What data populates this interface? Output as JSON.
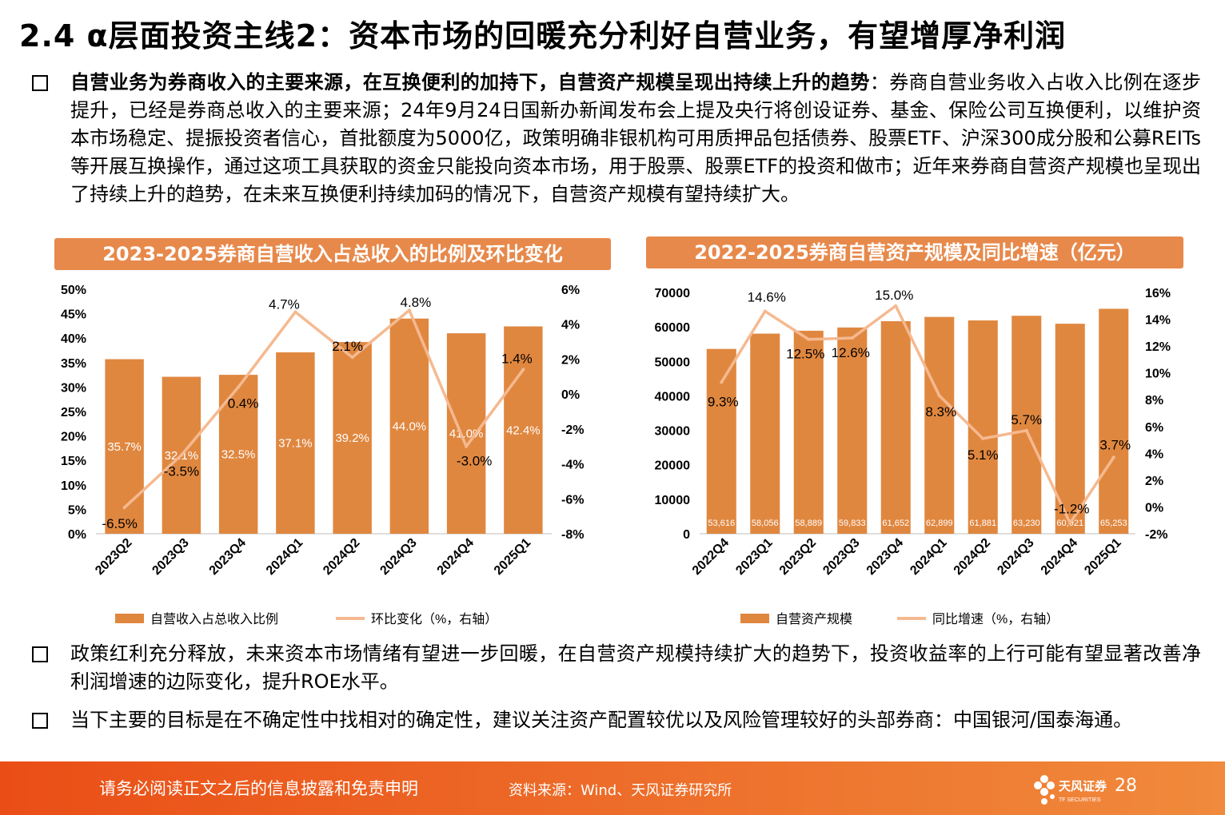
{
  "title": "2.4 α层面投资主线2：资本市场的回暖充分利好自营业务，有望增厚净利润",
  "bullet1": {
    "bold": "自营业务为券商收入的主要来源，在互换便利的加持下，自营资产规模呈现出持续上升的趋势",
    "text": "：券商自营业务收入占收入比例在逐步提升，已经是券商总收入的主要来源；24年9月24日国新办新闻发布会上提及央行将创设证券、基金、保险公司互换便利，以维护资本市场稳定、提振投资者信心，首批额度为5000亿，政策明确非银机构可用质押品包括债券、股票ETF、沪深300成分股和公募REITs等开展互换操作，通过这项工具获取的资金只能投向资本市场，用于股票、股票ETF的投资和做市；近年来券商自营资产规模也呈现出了持续上升的趋势，在未来互换便利持续加码的情况下，自营资产规模有望持续扩大。"
  },
  "bullet2": "政策红利充分释放，未来资本市场情绪有望进一步回暖，在自营资产规模持续扩大的趋势下，投资收益率的上行可能有望显著改善净利润增速的边际变化，提升ROE水平。",
  "bullet3": "当下主要的目标是在不确定性中找相对的确定性，建议关注资产配置较优以及风险管理较好的头部券商：中国银河/国泰海通。",
  "footer": {
    "disclaimer": "请务必阅读正文之后的信息披露和免责申明",
    "source": "资料来源：Wind、天风证券研究所",
    "logo_text": "天风证券",
    "logo_sub": "TF SECURITIES",
    "page": "28"
  },
  "colors": {
    "bar": "#e0873f",
    "line": "#f5b990",
    "accent": "#e7894b"
  },
  "chart_data": [
    {
      "type": "bar",
      "title": "2023-2025券商自营收入占总收入的比例及环比变化",
      "categories": [
        "2023Q2",
        "2023Q3",
        "2023Q4",
        "2024Q1",
        "2024Q2",
        "2024Q3",
        "2024Q4",
        "2025Q1"
      ],
      "series": [
        {
          "name": "自营收入占总收入比例",
          "type": "bar",
          "axis": "left",
          "values": [
            35.7,
            32.1,
            32.5,
            37.1,
            39.2,
            44.0,
            41.0,
            42.4
          ],
          "labels": [
            "35.7%",
            "32.1%",
            "32.5%",
            "37.1%",
            "39.2%",
            "44.0%",
            "41.0%",
            "42.4%"
          ]
        },
        {
          "name": "环比变化（%，右轴）",
          "type": "line",
          "axis": "right",
          "values": [
            -6.5,
            -3.5,
            0.4,
            4.7,
            2.1,
            4.8,
            -3.0,
            1.4
          ],
          "labels": [
            "-6.5%",
            "-3.5%",
            "0.4%",
            "4.7%",
            "2.1%",
            "4.8%",
            "-3.0%",
            "1.4%"
          ]
        }
      ],
      "y_left": {
        "ylim": [
          0,
          50
        ],
        "ticks": [
          "0%",
          "5%",
          "10%",
          "15%",
          "20%",
          "25%",
          "30%",
          "35%",
          "40%",
          "45%",
          "50%"
        ]
      },
      "y_right": {
        "ylim": [
          -8,
          6
        ],
        "ticks": [
          "-8%",
          "-6%",
          "-4%",
          "-2%",
          "0%",
          "2%",
          "4%",
          "6%"
        ]
      },
      "legend": "bottom",
      "grid": false
    },
    {
      "type": "bar",
      "title": "2022-2025券商自营资产规模及同比增速（亿元）",
      "categories": [
        "2022Q4",
        "2023Q1",
        "2023Q2",
        "2023Q3",
        "2023Q4",
        "2024Q1",
        "2024Q2",
        "2024Q3",
        "2024Q4",
        "2025Q1"
      ],
      "series": [
        {
          "name": "自营资产规模",
          "type": "bar",
          "axis": "left",
          "values": [
            53616,
            58056,
            58889,
            59833,
            61652,
            62899,
            61881,
            63230,
            60921,
            65253
          ],
          "labels": [
            "53,616",
            "58,056",
            "58,889",
            "59,833",
            "61,652",
            "62,899",
            "61,881",
            "63,230",
            "60,921",
            "65,253"
          ]
        },
        {
          "name": "同比增速（%，右轴）",
          "type": "line",
          "axis": "right",
          "values": [
            9.3,
            14.6,
            12.5,
            12.6,
            15.0,
            8.3,
            5.1,
            5.7,
            -1.2,
            3.7
          ],
          "labels": [
            "9.3%",
            "14.6%",
            "12.5%",
            "12.6%",
            "15.0%",
            "8.3%",
            "5.1%",
            "5.7%",
            "-1.2%",
            "3.7%"
          ]
        }
      ],
      "y_left": {
        "ylim": [
          0,
          70000
        ],
        "ticks": [
          "0",
          "10000",
          "20000",
          "30000",
          "40000",
          "50000",
          "60000",
          "70000"
        ]
      },
      "y_right": {
        "ylim": [
          -2,
          16
        ],
        "ticks": [
          "-2%",
          "0%",
          "2%",
          "4%",
          "6%",
          "8%",
          "10%",
          "12%",
          "14%",
          "16%"
        ]
      },
      "legend": "bottom",
      "grid": false
    }
  ]
}
